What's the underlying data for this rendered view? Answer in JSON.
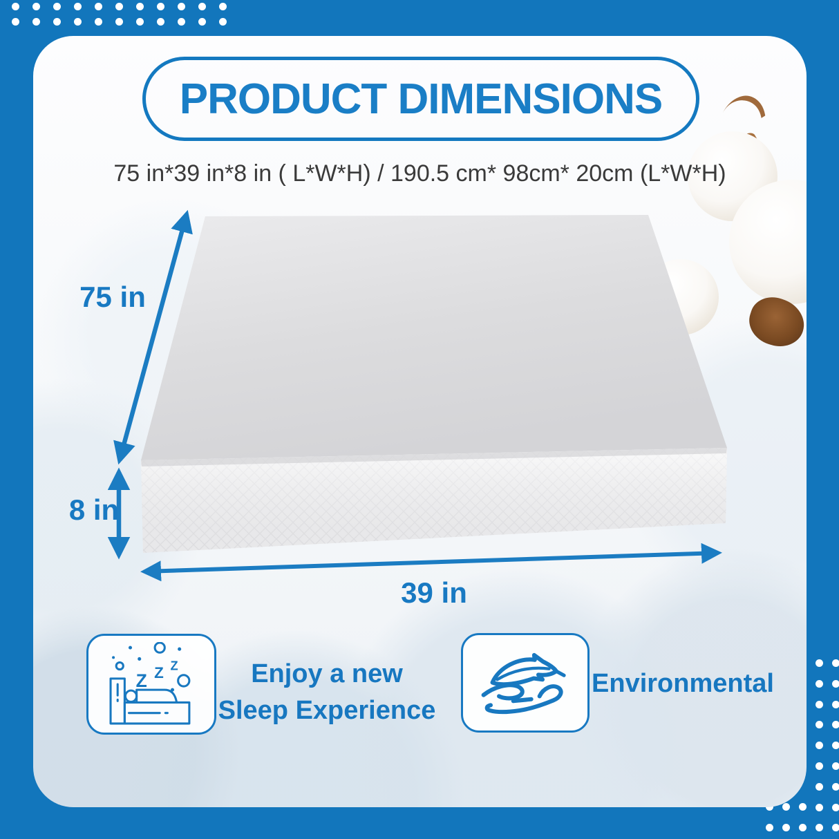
{
  "page": {
    "title": "PRODUCT DIMENSIONS",
    "dimensions_line": "75 in*39 in*8 in ( L*W*H) / 190.5 cm* 98cm* 20cm (L*W*H)"
  },
  "diagram": {
    "illustration": "mattress-3d",
    "labels": {
      "length": "75 in",
      "height": "8 in",
      "width": "39 in"
    }
  },
  "features": [
    {
      "icon": "sleeping-person-icon",
      "lines": [
        "Enjoy a new",
        "Sleep Experience"
      ]
    },
    {
      "icon": "feather-hand-icon",
      "lines": [
        "Environmental"
      ]
    }
  ],
  "colors": {
    "frame_blue": "#1276bc",
    "accent_blue": "#1879c2",
    "arrow_blue": "#1b7cc2",
    "text_dark": "#3a3a3a",
    "dot_white": "#ffffff",
    "mattress_top": "#dadadc",
    "mattress_front": "#f2f2f3"
  },
  "decor": {
    "corner_dots": [
      "top-left",
      "bottom-right"
    ],
    "cotton_flower_position": "top-right"
  }
}
